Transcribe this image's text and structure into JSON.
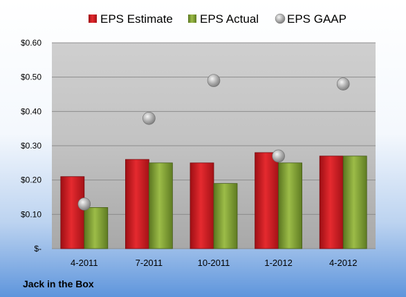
{
  "company_label": "Jack in the Box",
  "chart_data": {
    "type": "bar",
    "categories": [
      "4-2011",
      "7-2011",
      "10-2011",
      "1-2012",
      "4-2012"
    ],
    "series": [
      {
        "name": "EPS Estimate",
        "kind": "bar",
        "color": "#c8161d",
        "values": [
          0.21,
          0.26,
          0.25,
          0.28,
          0.27
        ]
      },
      {
        "name": "EPS Actual",
        "kind": "bar",
        "color": "#7a9a2e",
        "values": [
          0.12,
          0.25,
          0.19,
          0.25,
          0.27
        ]
      },
      {
        "name": "EPS GAAP",
        "kind": "scatter",
        "color": "#9a9a9a",
        "values": [
          0.13,
          0.38,
          0.49,
          0.27,
          0.48
        ]
      }
    ],
    "ylim": [
      0,
      0.6
    ],
    "yticks": [
      0,
      0.1,
      0.2,
      0.3,
      0.4,
      0.5,
      0.6
    ],
    "ytick_labels": [
      "$-",
      "$0.10",
      "$0.20",
      "$0.30",
      "$0.40",
      "$0.50",
      "$0.60"
    ],
    "legend_position": "top",
    "grid": true
  }
}
